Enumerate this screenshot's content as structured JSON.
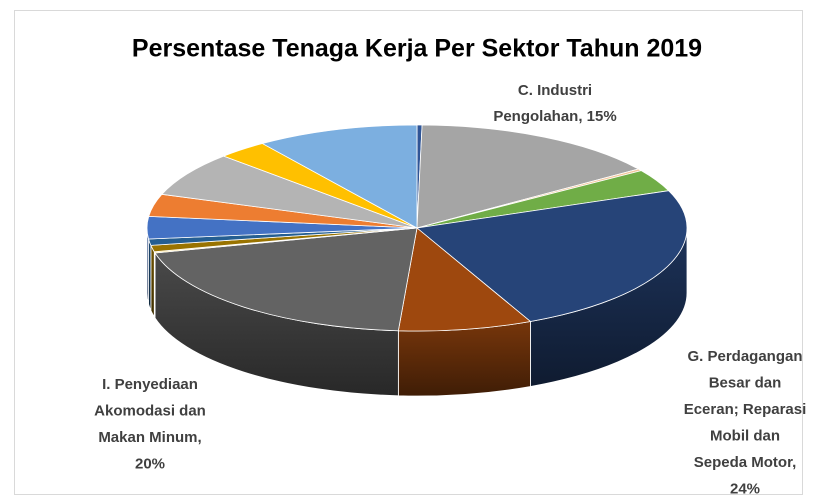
{
  "chart_data": {
    "type": "pie3d",
    "title": "Persentase Tenaga Kerja Per Sektor Tahun 2019",
    "categories": [
      null,
      null,
      null,
      null,
      null,
      null,
      null,
      null,
      null,
      null,
      null,
      null,
      null,
      null,
      null
    ],
    "values": [
      0.3,
      15,
      0.3,
      3.5,
      24,
      8,
      20,
      0.2,
      1,
      1,
      3.5,
      3.5,
      7,
      3,
      9.7
    ],
    "value_labels": [
      null,
      [
        "C. Industri",
        "Pengolahan, 15%"
      ],
      null,
      null,
      [
        "G. Perdagangan",
        "Besar dan",
        "Eceran; Reparasi",
        "Mobil dan",
        "Sepeda Motor,",
        "24%"
      ],
      null,
      [
        "I. Penyediaan",
        "Akomodasi dan",
        "Makan Minum,",
        "20%"
      ],
      null,
      null,
      null,
      null,
      null,
      null,
      null,
      null
    ],
    "colors": [
      "#2f5597",
      "#a5a5a5",
      "#f4c79c",
      "#70ad47",
      "#264478",
      "#9e480e",
      "#636363",
      "#ffe699",
      "#997300",
      "#255e91",
      "#4472c4",
      "#ed7d31",
      "#b4b4b4",
      "#ffc000",
      "#7cafe0"
    ]
  }
}
